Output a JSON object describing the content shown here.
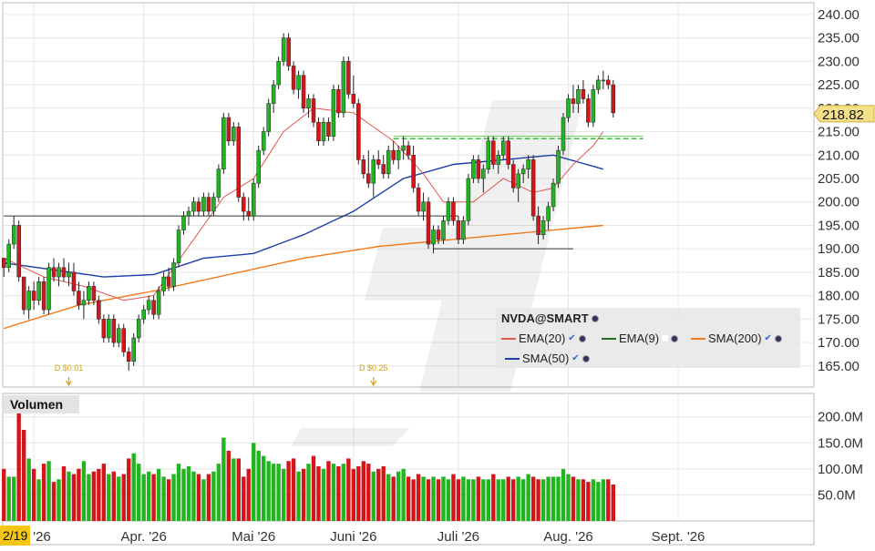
{
  "chart_data": {
    "type": "candlestick",
    "symbol": "NVDA@SMART",
    "last_price": "218.82",
    "y_ticks": [
      "240.00",
      "235.00",
      "230.00",
      "225.00",
      "220.00",
      "215.00",
      "210.00",
      "205.00",
      "200.00",
      "195.00",
      "190.00",
      "185.00",
      "180.00",
      "175.00",
      "170.00",
      "165.00"
    ],
    "ylim": [
      160.5,
      242.5
    ],
    "volume_ticks": [
      "200.0M",
      "150.0M",
      "100.0M",
      "50.0M"
    ],
    "volume_ylim": [
      0,
      245
    ],
    "volume_title": "Volumen",
    "x_labels": [
      {
        "i": 6,
        "label": "'26"
      },
      {
        "i": 28,
        "label": "Apr. '26"
      },
      {
        "i": 50,
        "label": "Mai '26"
      },
      {
        "i": 70,
        "label": "Juni '26"
      },
      {
        "i": 91,
        "label": "Juli '26"
      },
      {
        "i": 113,
        "label": "Aug. '26"
      },
      {
        "i": 135,
        "label": "Sept. '26"
      }
    ],
    "date_badge": "2/19",
    "dividends": [
      {
        "i": 13,
        "label": "D $0.01"
      },
      {
        "i": 74,
        "label": "D $0.25"
      }
    ],
    "legend": [
      {
        "name": "EMA(20)",
        "color": "#e05a4f"
      },
      {
        "name": "EMA(9)",
        "color": "#2a6b2a"
      },
      {
        "name": "SMA(200)",
        "color": "#f07a1a"
      },
      {
        "name": "SMA(50)",
        "color": "#1f3fa8"
      }
    ],
    "candles": [
      [
        188,
        188,
        184,
        186,
        100
      ],
      [
        186,
        192,
        185,
        191,
        85
      ],
      [
        191,
        197,
        190,
        195,
        85
      ],
      [
        195,
        196,
        183,
        184,
        240
      ],
      [
        184,
        184,
        176,
        177,
        175
      ],
      [
        177,
        182,
        175,
        181,
        120
      ],
      [
        181,
        183,
        177,
        179,
        100
      ],
      [
        179,
        184,
        178,
        183,
        80
      ],
      [
        183,
        184,
        176,
        177,
        110
      ],
      [
        177,
        187,
        176,
        186,
        115
      ],
      [
        186,
        188,
        183,
        184,
        75
      ],
      [
        184,
        187,
        182,
        186,
        80
      ],
      [
        186,
        188,
        183,
        184,
        105
      ],
      [
        184,
        187,
        182,
        185,
        95
      ],
      [
        185,
        187,
        180,
        181,
        90
      ],
      [
        181,
        183,
        177,
        178,
        100
      ],
      [
        178,
        181,
        175,
        179,
        115
      ],
      [
        179,
        183,
        178,
        182,
        90
      ],
      [
        182,
        183,
        178,
        179,
        95
      ],
      [
        179,
        180,
        174,
        175,
        100
      ],
      [
        175,
        176,
        170,
        171,
        110
      ],
      [
        171,
        176,
        170,
        175,
        90
      ],
      [
        175,
        176,
        169,
        170,
        95
      ],
      [
        170,
        174,
        169,
        173,
        85
      ],
      [
        173,
        174,
        167,
        168,
        90
      ],
      [
        168,
        169,
        164,
        166,
        120
      ],
      [
        166,
        172,
        165,
        171,
        130
      ],
      [
        171,
        176,
        170,
        175,
        110
      ],
      [
        175,
        178,
        174,
        177,
        90
      ],
      [
        177,
        180,
        176,
        179,
        95
      ],
      [
        179,
        180,
        175,
        176,
        90
      ],
      [
        176,
        182,
        175,
        181,
        100
      ],
      [
        181,
        185,
        180,
        184,
        85
      ],
      [
        184,
        186,
        181,
        182,
        80
      ],
      [
        182,
        188,
        181,
        187,
        90
      ],
      [
        187,
        195,
        186,
        194,
        110
      ],
      [
        194,
        198,
        193,
        197,
        100
      ],
      [
        197,
        199,
        195,
        198,
        105
      ],
      [
        198,
        201,
        197,
        200,
        95
      ],
      [
        200,
        201,
        197,
        198,
        90
      ],
      [
        198,
        202,
        197,
        201,
        80
      ],
      [
        201,
        202,
        197,
        198,
        90
      ],
      [
        198,
        202,
        197,
        201,
        95
      ],
      [
        201,
        208,
        200,
        207,
        110
      ],
      [
        207,
        219,
        206,
        218,
        160
      ],
      [
        218,
        219,
        212,
        213,
        135
      ],
      [
        213,
        217,
        212,
        216,
        120
      ],
      [
        216,
        217,
        200,
        201,
        120
      ],
      [
        201,
        202,
        196,
        198,
        85
      ],
      [
        198,
        201,
        196,
        197,
        100
      ],
      [
        197,
        205,
        196,
        204,
        150
      ],
      [
        204,
        212,
        203,
        211,
        135
      ],
      [
        211,
        216,
        210,
        215,
        125
      ],
      [
        215,
        222,
        214,
        221,
        115
      ],
      [
        221,
        226,
        219,
        225,
        110
      ],
      [
        225,
        231,
        224,
        230,
        110
      ],
      [
        230,
        236,
        229,
        235,
        100
      ],
      [
        235,
        236,
        228,
        229,
        115
      ],
      [
        229,
        230,
        223,
        224,
        120
      ],
      [
        224,
        228,
        222,
        227,
        95
      ],
      [
        227,
        228,
        219,
        220,
        100
      ],
      [
        220,
        223,
        218,
        222,
        110
      ],
      [
        222,
        223,
        216,
        217,
        125
      ],
      [
        217,
        218,
        212,
        213,
        105
      ],
      [
        213,
        218,
        212,
        217,
        100
      ],
      [
        217,
        218,
        213,
        214,
        115
      ],
      [
        214,
        225,
        213,
        224,
        110
      ],
      [
        224,
        225,
        218,
        219,
        105
      ],
      [
        219,
        231,
        218,
        230,
        110
      ],
      [
        230,
        231,
        222,
        223,
        120
      ],
      [
        223,
        227,
        220,
        221,
        100
      ],
      [
        221,
        222,
        208,
        209,
        105
      ],
      [
        209,
        210,
        205,
        206,
        115
      ],
      [
        206,
        211,
        203,
        204,
        110
      ],
      [
        204,
        210,
        201,
        209,
        95
      ],
      [
        209,
        211,
        207,
        208,
        100
      ],
      [
        208,
        210,
        205,
        206,
        105
      ],
      [
        206,
        212,
        205,
        211,
        90
      ],
      [
        211,
        213,
        208,
        209,
        85
      ],
      [
        209,
        212,
        207,
        211,
        95
      ],
      [
        211,
        214,
        209,
        212,
        100
      ],
      [
        212,
        213,
        209,
        210,
        85
      ],
      [
        210,
        212,
        202,
        203,
        80
      ],
      [
        203,
        204,
        197,
        198,
        90
      ],
      [
        198,
        202,
        196,
        200,
        85
      ],
      [
        200,
        201,
        190,
        191,
        80
      ],
      [
        191,
        195,
        189,
        194,
        85
      ],
      [
        194,
        195,
        191,
        192,
        80
      ],
      [
        192,
        197,
        191,
        196,
        85
      ],
      [
        196,
        201,
        195,
        200,
        80
      ],
      [
        200,
        201,
        195,
        196,
        90
      ],
      [
        196,
        197,
        191,
        192,
        80
      ],
      [
        192,
        197,
        191,
        196,
        85
      ],
      [
        196,
        206,
        195,
        205,
        80
      ],
      [
        205,
        210,
        204,
        209,
        80
      ],
      [
        209,
        210,
        204,
        205,
        85
      ],
      [
        205,
        208,
        202,
        207,
        80
      ],
      [
        207,
        214,
        206,
        213,
        80
      ],
      [
        213,
        214,
        207,
        208,
        90
      ],
      [
        208,
        211,
        206,
        210,
        80
      ],
      [
        210,
        214,
        209,
        213,
        80
      ],
      [
        213,
        214,
        207,
        208,
        85
      ],
      [
        208,
        209,
        202,
        203,
        80
      ],
      [
        203,
        207,
        200,
        206,
        85
      ],
      [
        206,
        208,
        204,
        207,
        80
      ],
      [
        207,
        210,
        205,
        209,
        90
      ],
      [
        209,
        210,
        196,
        197,
        85
      ],
      [
        197,
        199,
        191,
        193,
        80
      ],
      [
        193,
        197,
        192,
        196,
        80
      ],
      [
        196,
        200,
        194,
        199,
        85
      ],
      [
        199,
        205,
        198,
        204,
        85
      ],
      [
        204,
        212,
        203,
        211,
        85
      ],
      [
        211,
        219,
        210,
        218,
        100
      ],
      [
        218,
        223,
        217,
        222,
        90
      ],
      [
        222,
        225,
        219,
        221,
        85
      ],
      [
        221,
        225,
        219,
        224,
        80
      ],
      [
        224,
        226,
        221,
        222,
        80
      ],
      [
        222,
        223,
        216,
        217,
        75
      ],
      [
        217,
        225,
        216,
        224,
        80
      ],
      [
        224,
        227,
        223,
        226,
        75
      ],
      [
        226,
        228,
        224,
        226,
        80
      ],
      [
        226,
        227,
        224,
        225,
        80
      ],
      [
        225,
        226,
        218,
        219,
        70
      ]
    ],
    "sma50_anchors": [
      [
        0,
        187
      ],
      [
        10,
        185.5
      ],
      [
        20,
        184
      ],
      [
        30,
        184.5
      ],
      [
        40,
        188
      ],
      [
        50,
        189
      ],
      [
        60,
        193
      ],
      [
        70,
        198
      ],
      [
        80,
        205
      ],
      [
        90,
        208
      ],
      [
        100,
        209
      ],
      [
        110,
        210
      ],
      [
        120,
        207
      ]
    ],
    "sma200_anchors": [
      [
        0,
        173
      ],
      [
        15,
        178
      ],
      [
        30,
        181
      ],
      [
        45,
        184.5
      ],
      [
        60,
        188
      ],
      [
        75,
        190.5
      ],
      [
        90,
        192
      ],
      [
        105,
        193.5
      ],
      [
        120,
        195
      ]
    ],
    "ema20_anchors": [
      [
        0,
        188
      ],
      [
        8,
        184
      ],
      [
        16,
        182
      ],
      [
        24,
        179
      ],
      [
        30,
        180
      ],
      [
        36,
        189
      ],
      [
        44,
        201
      ],
      [
        50,
        205
      ],
      [
        56,
        215
      ],
      [
        62,
        220
      ],
      [
        70,
        219
      ],
      [
        78,
        213
      ],
      [
        84,
        206
      ],
      [
        88,
        200
      ],
      [
        94,
        200
      ],
      [
        100,
        205
      ],
      [
        106,
        202
      ],
      [
        110,
        203
      ],
      [
        114,
        208
      ],
      [
        118,
        212
      ],
      [
        120,
        215
      ]
    ],
    "hlines": [
      {
        "y": 197,
        "i0": 0,
        "i1": 91,
        "color": "#333333"
      },
      {
        "y": 190,
        "i0": 86,
        "i1": 114,
        "color": "#333333"
      },
      {
        "y": 213.5,
        "i0": 78,
        "i1": 128,
        "color": "#3fbf3f",
        "dashed": true
      },
      {
        "y": 214,
        "i0": 78,
        "i1": 128,
        "color": "#6fcf5f",
        "dashed": false
      }
    ]
  }
}
